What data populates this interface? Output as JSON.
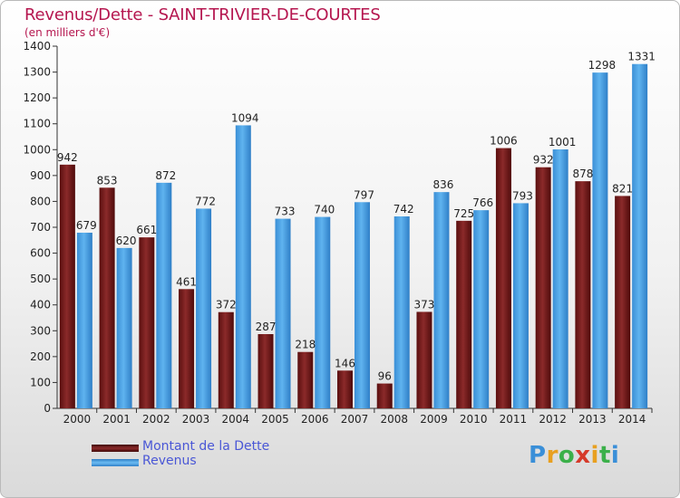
{
  "title": "Revenus/Dette - SAINT-TRIVIER-DE-COURTES",
  "subtitle": "(en milliers d'€)",
  "legend": {
    "debt_label": "Montant de la Dette",
    "revenue_label": "Revenus"
  },
  "logo_text": "Proxiti",
  "colors": {
    "debt": "#7a1c1c",
    "revenue": "#4aa3e6",
    "title": "#b5164f",
    "legend_text": "#4a57d6"
  },
  "chart_data": {
    "type": "bar",
    "categories": [
      "2000",
      "2001",
      "2002",
      "2003",
      "2004",
      "2005",
      "2006",
      "2007",
      "2008",
      "2009",
      "2010",
      "2011",
      "2012",
      "2013",
      "2014"
    ],
    "series": [
      {
        "name": "Montant de la Dette",
        "values": [
          942,
          853,
          661,
          461,
          372,
          287,
          218,
          146,
          96,
          373,
          725,
          1006,
          932,
          878,
          821
        ]
      },
      {
        "name": "Revenus",
        "values": [
          679,
          620,
          872,
          772,
          1094,
          733,
          740,
          797,
          742,
          836,
          766,
          793,
          1001,
          1298,
          1331
        ]
      }
    ],
    "ylim": [
      0,
      1400
    ],
    "yticks": [
      0,
      100,
      200,
      300,
      400,
      500,
      600,
      700,
      800,
      900,
      1000,
      1100,
      1200,
      1300,
      1400
    ],
    "grid": false,
    "legend_position": "bottom-left"
  }
}
